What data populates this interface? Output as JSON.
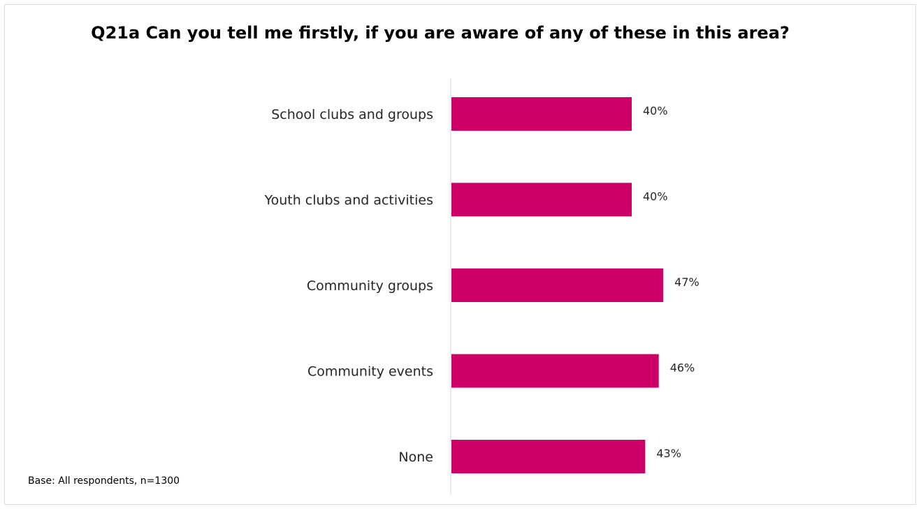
{
  "chart_data": {
    "type": "bar",
    "orientation": "horizontal",
    "title": "Q21a Can you tell me firstly,  if you are aware of any of these  in this area?",
    "categories": [
      "School clubs and groups",
      "Youth clubs and activities",
      "Community groups",
      "Community events",
      "None"
    ],
    "values": [
      40,
      40,
      47,
      46,
      43
    ],
    "value_labels": [
      "40%",
      "40%",
      "47%",
      "46%",
      "43%"
    ],
    "unit": "%",
    "xlim": [
      0,
      100
    ],
    "grid": false,
    "legend": "none",
    "bar_color": "#cc0066",
    "axis_color": "#d9d9d9"
  },
  "footnote": "Base: All respondents, n=1300"
}
